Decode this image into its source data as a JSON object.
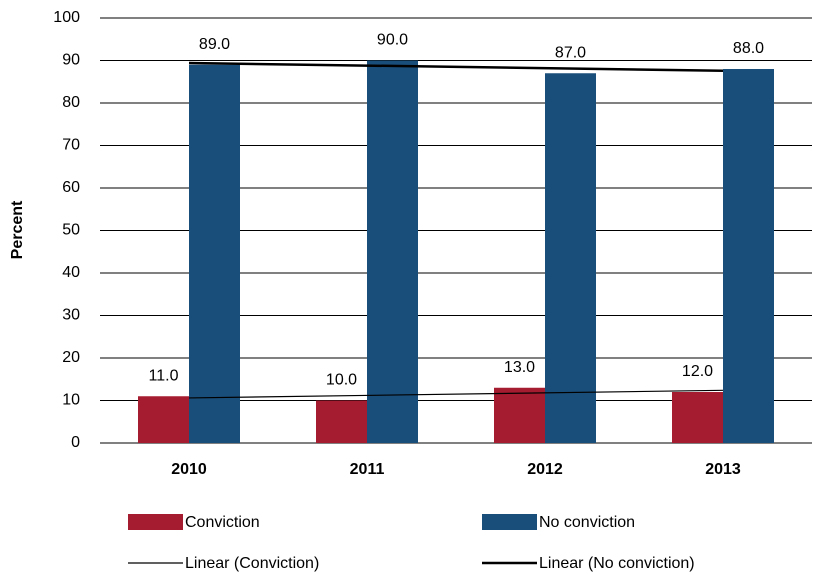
{
  "chart_data": {
    "type": "bar",
    "y_label": "Percent",
    "categories": [
      "2010",
      "2011",
      "2012",
      "2013"
    ],
    "series": [
      {
        "name": "Conviction",
        "color": "#a51c30",
        "values": [
          11,
          10,
          13,
          12
        ],
        "value_labels": [
          "11.0",
          "10.0",
          "13.0",
          "12.0"
        ]
      },
      {
        "name": "No conviction",
        "color": "#1a4e7a",
        "values": [
          89,
          90,
          87,
          88
        ],
        "value_labels": [
          "89.0",
          "90.0",
          "87.0",
          "88.0"
        ]
      }
    ],
    "trendlines": [
      {
        "name": "Linear (Conviction)",
        "color": "#000000"
      },
      {
        "name": "Linear (No conviction)",
        "color": "#000000"
      }
    ],
    "ylim": [
      0,
      100
    ],
    "yticks": [
      0,
      10,
      20,
      30,
      40,
      50,
      60,
      70,
      80,
      90,
      100
    ],
    "grid": true
  }
}
